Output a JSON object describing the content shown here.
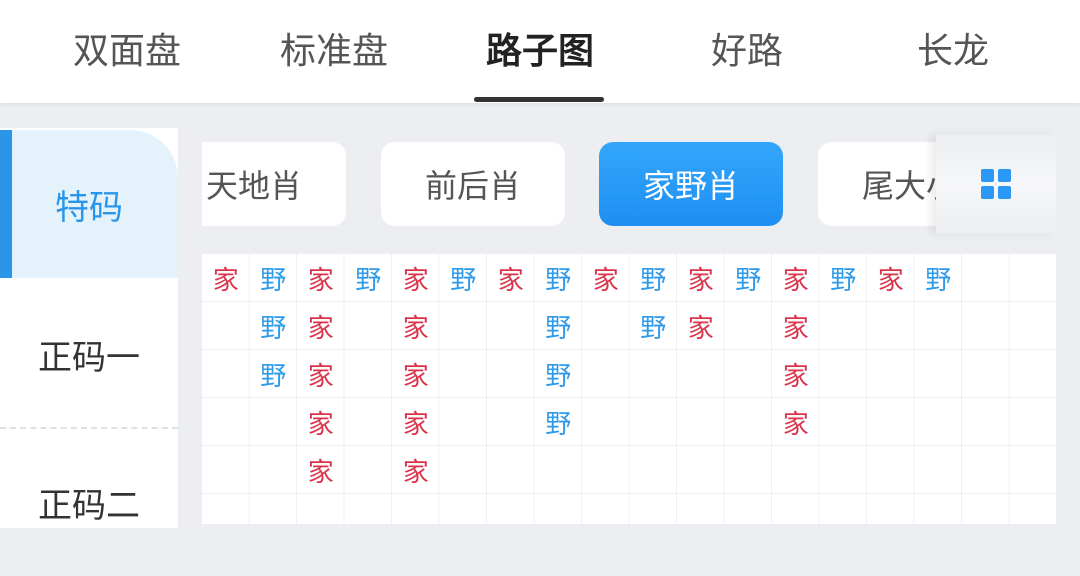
{
  "top_tabs": [
    {
      "label": "双面盘"
    },
    {
      "label": "标准盘"
    },
    {
      "label": "路子图",
      "active": true
    },
    {
      "label": "好路"
    },
    {
      "label": "长龙"
    }
  ],
  "sidebar": {
    "items": [
      {
        "label": "特码",
        "active": true
      },
      {
        "label": "正码一"
      },
      {
        "label": "正码二"
      }
    ]
  },
  "filters": {
    "items": [
      {
        "label": "天地肖"
      },
      {
        "label": "前后肖"
      },
      {
        "label": "家野肖",
        "active": true
      },
      {
        "label": "尾大小"
      }
    ],
    "grid_icon": "grid-icon"
  },
  "colors": {
    "accent": "#2a96ea",
    "家": "#d9344a",
    "野": "#2f9be8"
  },
  "board": {
    "columns": [
      [
        "家"
      ],
      [
        "野",
        "野",
        "野"
      ],
      [
        "家",
        "家",
        "家",
        "家",
        "家"
      ],
      [
        "野"
      ],
      [
        "家",
        "家",
        "家",
        "家",
        "家"
      ],
      [
        "野"
      ],
      [
        "家"
      ],
      [
        "野",
        "野",
        "野",
        "野"
      ],
      [
        "家"
      ],
      [
        "野",
        "野"
      ],
      [
        "家",
        "家"
      ],
      [
        "野"
      ],
      [
        "家",
        "家",
        "家",
        "家"
      ],
      [
        "野"
      ],
      [
        "家"
      ],
      [
        "野"
      ],
      [],
      []
    ]
  }
}
